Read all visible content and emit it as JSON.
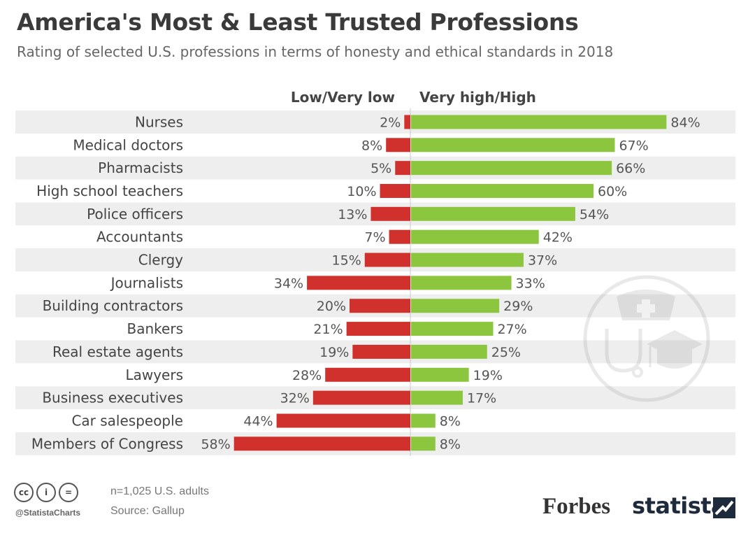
{
  "header": {
    "title": "America's Most & Least Trusted Professions",
    "subtitle": "Rating of selected U.S. professions in terms of honesty and ethical standards in 2018"
  },
  "chart_data": {
    "type": "bar",
    "orientation": "horizontal-diverging",
    "categories": [
      "Nurses",
      "Medical doctors",
      "Pharmacists",
      "High school teachers",
      "Police officers",
      "Accountants",
      "Clergy",
      "Journalists",
      "Building contractors",
      "Bankers",
      "Real estate agents",
      "Lawyers",
      "Business executives",
      "Car salespeople",
      "Members of Congress"
    ],
    "series": [
      {
        "name": "Low/Very low",
        "color": "#d0312d",
        "direction": "left",
        "values": [
          2,
          8,
          5,
          10,
          13,
          7,
          15,
          34,
          20,
          21,
          19,
          28,
          32,
          44,
          58
        ],
        "labels": [
          "2%",
          "8%",
          "5%",
          "10%",
          "13%",
          "7%",
          "15%",
          "34%",
          "20%",
          "21%",
          "19%",
          "28%",
          "32%",
          "44%",
          "58%"
        ]
      },
      {
        "name": "Very high/High",
        "color": "#8cc63f",
        "direction": "right",
        "values": [
          84,
          67,
          66,
          60,
          54,
          42,
          37,
          33,
          29,
          27,
          25,
          19,
          17,
          8,
          8
        ],
        "labels": [
          "84%",
          "67%",
          "66%",
          "60%",
          "54%",
          "42%",
          "37%",
          "33%",
          "29%",
          "27%",
          "25%",
          "19%",
          "17%",
          "8%",
          "8%"
        ]
      }
    ],
    "unit": "%",
    "row_stripe_color": "#eeeeee"
  },
  "footer": {
    "handle": "@StatistaCharts",
    "note": "n=1,025 U.S. adults",
    "source": "Source: Gallup",
    "icons": [
      "cc-icon",
      "person-icon",
      "equals-icon"
    ],
    "icon_glyphs": [
      "cc",
      "i",
      "="
    ],
    "brand_forbes": "Forbes",
    "brand_statista": "statista"
  }
}
